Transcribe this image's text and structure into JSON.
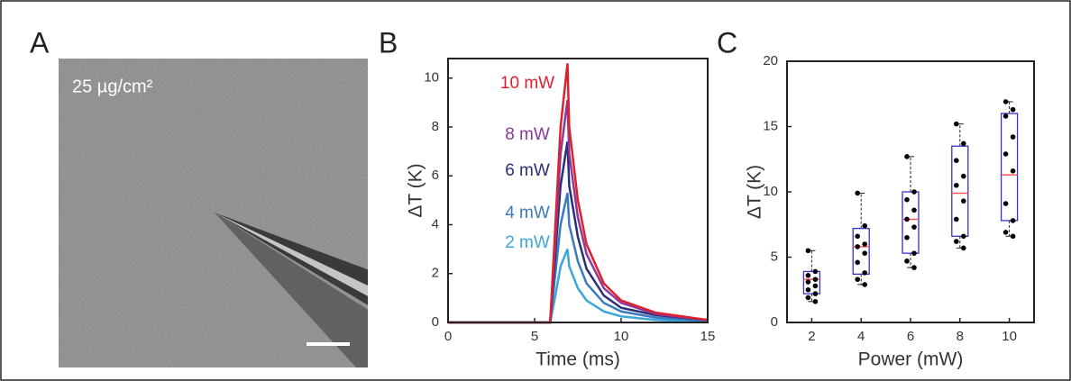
{
  "panel_labels": [
    "A",
    "B",
    "C"
  ],
  "image": {
    "label": "25 µg/cm²"
  },
  "chart_data": [
    {
      "type": "line",
      "xlabel": "Time (ms)",
      "ylabel": "ΔT (K)",
      "x": [
        0,
        5.9,
        6.2,
        6.5,
        6.9,
        7.0,
        7.5,
        8,
        9,
        10,
        12,
        15
      ],
      "series": [
        {
          "name": "10 mW",
          "color": "#e0202f",
          "values": [
            0,
            0,
            4,
            8,
            10.6,
            8,
            5,
            3.2,
            1.6,
            0.9,
            0.4,
            0.1
          ]
        },
        {
          "name": "8 mW",
          "color": "#8b3a9a",
          "values": [
            0,
            0,
            3.4,
            6.9,
            9.1,
            6.9,
            4.3,
            2.8,
            1.4,
            0.8,
            0.35,
            0.1
          ]
        },
        {
          "name": "6 mW",
          "color": "#2b2f7a",
          "values": [
            0,
            0,
            2.8,
            5.6,
            7.4,
            5.6,
            3.5,
            2.2,
            1.1,
            0.6,
            0.3,
            0.1
          ]
        },
        {
          "name": "4 mW",
          "color": "#3a7bbf",
          "values": [
            0,
            0,
            2,
            4,
            5.3,
            4,
            2.5,
            1.6,
            0.8,
            0.45,
            0.2,
            0.05
          ]
        },
        {
          "name": "2 mW",
          "color": "#3aa7d8",
          "values": [
            0,
            0,
            1.1,
            2.3,
            3.0,
            2.3,
            1.4,
            0.9,
            0.45,
            0.25,
            0.1,
            0.03
          ]
        }
      ],
      "xlim": [
        0,
        15
      ],
      "xticks": [
        0,
        5,
        10,
        15
      ],
      "ylim": [
        0,
        10.8
      ],
      "yticks": [
        0,
        2,
        4,
        6,
        8,
        10
      ]
    },
    {
      "type": "box",
      "xlabel": "Power (mW)",
      "ylabel": "ΔT (K)",
      "categories": [
        "2",
        "4",
        "6",
        "8",
        "10"
      ],
      "box_color": "#3333cc",
      "median_color": "#ff5555",
      "point_color": "#000000",
      "boxes": [
        {
          "whisker_low": 1.6,
          "q1": 2.2,
          "median": 3.3,
          "q3": 3.9,
          "whisker_high": 5.5,
          "points": [
            5.5,
            3.9,
            3.6,
            3.3,
            3.1,
            2.8,
            2.5,
            2.2,
            1.9,
            1.6
          ]
        },
        {
          "whisker_low": 2.9,
          "q1": 3.7,
          "median": 5.8,
          "q3": 7.2,
          "whisker_high": 9.9,
          "points": [
            9.9,
            7.4,
            6.6,
            6.0,
            5.8,
            5.3,
            4.6,
            3.8,
            3.3,
            2.9
          ]
        },
        {
          "whisker_low": 4.2,
          "q1": 5.3,
          "median": 7.9,
          "q3": 10.0,
          "whisker_high": 12.7,
          "points": [
            12.7,
            10.0,
            9.4,
            8.6,
            7.9,
            7.3,
            6.5,
            5.3,
            4.7,
            4.2
          ]
        },
        {
          "whisker_low": 5.7,
          "q1": 6.6,
          "median": 9.9,
          "q3": 13.5,
          "whisker_high": 15.2,
          "points": [
            15.2,
            13.7,
            12.4,
            11.2,
            10.5,
            9.3,
            7.9,
            6.6,
            6.2,
            5.7
          ]
        },
        {
          "whisker_low": 6.6,
          "q1": 7.8,
          "median": 11.3,
          "q3": 16.0,
          "whisker_high": 16.9,
          "points": [
            16.9,
            16.3,
            15.8,
            14.2,
            12.9,
            11.6,
            9.1,
            7.8,
            6.9,
            6.6
          ]
        }
      ],
      "ylim": [
        0,
        20
      ],
      "yticks": [
        0,
        5,
        10,
        15,
        20
      ]
    }
  ]
}
